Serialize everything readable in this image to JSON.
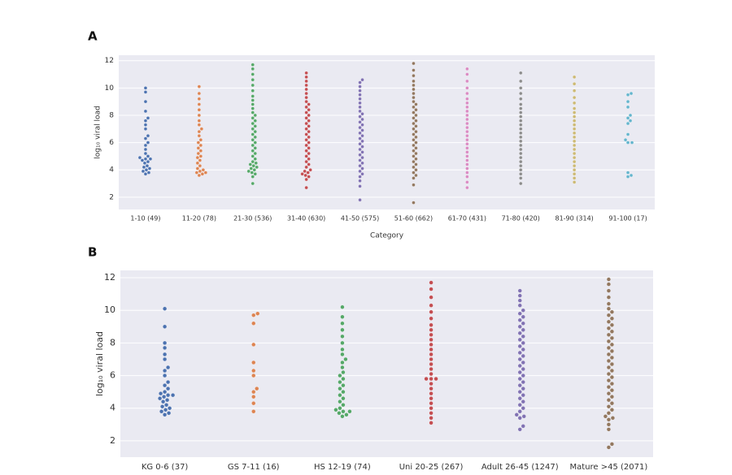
{
  "chart_data": [
    {
      "type": "swarm",
      "panel_label": "A",
      "y_label": "log₁₀ viral load",
      "x_label": "Category",
      "ylim": [
        1.1,
        12.4
      ],
      "yticks": [
        2,
        4,
        6,
        8,
        10,
        12
      ],
      "grid": true,
      "categories": [
        "1-10 (49)",
        "11-20 (78)",
        "21-30 (536)",
        "31-40 (630)",
        "41-50 (575)",
        "51-60 (662)",
        "61-70 (431)",
        "71-80 (420)",
        "81-90 (314)",
        "91-100 (17)"
      ],
      "colors": [
        "#4c72b0",
        "#dd8452",
        "#55a868",
        "#c44e52",
        "#8172b3",
        "#937860",
        "#da8bc3",
        "#8c8c8c",
        "#ccb974",
        "#64b5cd"
      ],
      "values": [
        [
          3.7,
          3.8,
          3.9,
          4.0,
          4.1,
          4.2,
          4.3,
          4.5,
          4.6,
          4.7,
          4.8,
          4.8,
          4.9,
          5.0,
          5.2,
          5.5,
          5.8,
          6.0,
          6.3,
          6.5,
          7.0,
          7.3,
          7.6,
          7.8,
          8.3,
          9.0,
          9.7,
          10.0
        ],
        [
          3.6,
          3.7,
          3.8,
          3.8,
          3.9,
          4.0,
          4.1,
          4.3,
          4.5,
          4.7,
          4.9,
          5.0,
          5.2,
          5.4,
          5.6,
          5.8,
          6.0,
          6.2,
          6.5,
          6.8,
          7.0,
          7.3,
          7.6,
          8.0,
          8.4,
          8.8,
          9.2,
          9.6,
          10.1
        ],
        [
          3.0,
          3.5,
          3.7,
          3.8,
          3.9,
          4.0,
          4.1,
          4.2,
          4.3,
          4.4,
          4.5,
          4.6,
          4.8,
          5.0,
          5.2,
          5.4,
          5.6,
          5.8,
          6.0,
          6.2,
          6.4,
          6.6,
          6.8,
          7.0,
          7.2,
          7.4,
          7.6,
          7.8,
          8.0,
          8.2,
          8.5,
          8.8,
          9.1,
          9.4,
          9.8,
          10.2,
          10.6,
          11.0,
          11.4,
          11.7
        ],
        [
          2.7,
          3.3,
          3.5,
          3.6,
          3.7,
          3.8,
          3.9,
          4.0,
          4.2,
          4.4,
          4.6,
          4.8,
          5.0,
          5.2,
          5.4,
          5.6,
          5.8,
          6.0,
          6.2,
          6.4,
          6.6,
          6.8,
          7.0,
          7.2,
          7.4,
          7.6,
          7.8,
          8.0,
          8.2,
          8.4,
          8.6,
          8.8,
          9.0,
          9.3,
          9.6,
          9.9,
          10.2,
          10.5,
          10.8,
          11.1
        ],
        [
          1.8,
          2.8,
          3.2,
          3.5,
          3.7,
          3.9,
          4.1,
          4.3,
          4.5,
          4.7,
          4.9,
          5.1,
          5.3,
          5.5,
          5.7,
          5.9,
          6.1,
          6.3,
          6.5,
          6.7,
          6.9,
          7.1,
          7.3,
          7.5,
          7.7,
          7.9,
          8.1,
          8.3,
          8.6,
          8.9,
          9.2,
          9.5,
          9.8,
          10.1,
          10.4,
          10.6
        ],
        [
          1.6,
          2.9,
          3.4,
          3.6,
          3.8,
          4.0,
          4.2,
          4.4,
          4.6,
          4.8,
          5.0,
          5.2,
          5.4,
          5.6,
          5.8,
          6.0,
          6.2,
          6.4,
          6.6,
          6.8,
          7.0,
          7.2,
          7.4,
          7.6,
          7.8,
          8.0,
          8.2,
          8.4,
          8.6,
          8.8,
          9.0,
          9.3,
          9.6,
          9.9,
          10.2,
          10.5,
          10.9,
          11.3,
          11.8
        ],
        [
          2.7,
          3.1,
          3.5,
          3.8,
          4.1,
          4.4,
          4.7,
          5.0,
          5.3,
          5.6,
          5.9,
          6.2,
          6.5,
          6.8,
          7.1,
          7.4,
          7.7,
          8.0,
          8.3,
          8.6,
          8.9,
          9.2,
          9.6,
          10.0,
          10.5,
          11.0,
          11.4
        ],
        [
          3.0,
          3.4,
          3.7,
          4.0,
          4.3,
          4.6,
          4.9,
          5.2,
          5.5,
          5.8,
          6.1,
          6.4,
          6.7,
          7.0,
          7.3,
          7.6,
          7.9,
          8.2,
          8.5,
          8.8,
          9.2,
          9.6,
          10.0,
          10.5,
          11.1
        ],
        [
          3.1,
          3.4,
          3.7,
          4.0,
          4.3,
          4.6,
          4.9,
          5.2,
          5.5,
          5.8,
          6.1,
          6.4,
          6.7,
          7.0,
          7.3,
          7.6,
          7.9,
          8.2,
          8.5,
          8.9,
          9.3,
          9.8,
          10.3,
          10.8
        ],
        [
          3.5,
          3.6,
          3.8,
          6.0,
          6.0,
          6.2,
          6.6,
          7.4,
          7.6,
          7.8,
          8.0,
          8.6,
          9.0,
          9.5,
          9.6
        ]
      ]
    },
    {
      "type": "swarm",
      "panel_label": "B",
      "y_label": "log₁₀ viral load",
      "ylim": [
        1.0,
        12.45
      ],
      "yticks": [
        2,
        4,
        6,
        8,
        10,
        12
      ],
      "grid": true,
      "categories": [
        "KG 0-6 (37)",
        "GS 7-11 (16)",
        "HS 12-19 (74)",
        "Uni 20-25 (267)",
        "Adult 26-45 (1247)",
        "Mature >45 (2071)"
      ],
      "colors": [
        "#4c72b0",
        "#dd8452",
        "#55a868",
        "#c44e52",
        "#8172b3",
        "#937860"
      ],
      "values": [
        [
          3.6,
          3.7,
          3.8,
          3.9,
          4.0,
          4.1,
          4.2,
          4.4,
          4.5,
          4.6,
          4.7,
          4.8,
          4.8,
          4.9,
          5.0,
          5.2,
          5.4,
          5.6,
          6.0,
          6.3,
          6.5,
          7.0,
          7.3,
          7.7,
          8.0,
          9.0,
          10.1
        ],
        [
          3.8,
          4.3,
          4.7,
          5.0,
          5.2,
          6.0,
          6.3,
          6.8,
          7.9,
          9.2,
          9.7,
          9.8
        ],
        [
          3.5,
          3.6,
          3.7,
          3.8,
          3.8,
          3.9,
          4.0,
          4.2,
          4.4,
          4.6,
          4.8,
          5.0,
          5.2,
          5.4,
          5.6,
          5.8,
          6.0,
          6.2,
          6.5,
          6.8,
          7.0,
          7.3,
          7.6,
          8.0,
          8.4,
          8.8,
          9.2,
          9.6,
          10.2
        ],
        [
          3.1,
          3.4,
          3.7,
          4.0,
          4.3,
          4.6,
          4.9,
          5.2,
          5.5,
          5.8,
          5.8,
          5.8,
          6.1,
          6.4,
          6.7,
          7.0,
          7.3,
          7.6,
          7.9,
          8.2,
          8.5,
          8.8,
          9.1,
          9.5,
          9.9,
          10.3,
          10.8,
          11.3,
          11.7
        ],
        [
          2.7,
          2.9,
          3.4,
          3.5,
          3.6,
          3.8,
          4.0,
          4.2,
          4.4,
          4.6,
          4.8,
          5.0,
          5.2,
          5.4,
          5.6,
          5.8,
          6.0,
          6.2,
          6.4,
          6.6,
          6.8,
          7.0,
          7.2,
          7.4,
          7.6,
          7.8,
          8.0,
          8.2,
          8.4,
          8.6,
          8.8,
          9.0,
          9.2,
          9.4,
          9.6,
          9.8,
          10.0,
          10.3,
          10.6,
          10.9,
          11.2
        ],
        [
          1.6,
          1.8,
          2.7,
          3.0,
          3.3,
          3.4,
          3.5,
          3.7,
          3.9,
          4.1,
          4.3,
          4.5,
          4.7,
          4.9,
          5.1,
          5.3,
          5.5,
          5.7,
          5.9,
          6.1,
          6.3,
          6.5,
          6.7,
          6.9,
          7.1,
          7.3,
          7.5,
          7.7,
          7.9,
          8.1,
          8.3,
          8.5,
          8.7,
          8.9,
          9.1,
          9.3,
          9.5,
          9.7,
          9.9,
          10.1,
          10.4,
          10.8,
          11.2,
          11.6,
          11.9
        ]
      ]
    }
  ]
}
